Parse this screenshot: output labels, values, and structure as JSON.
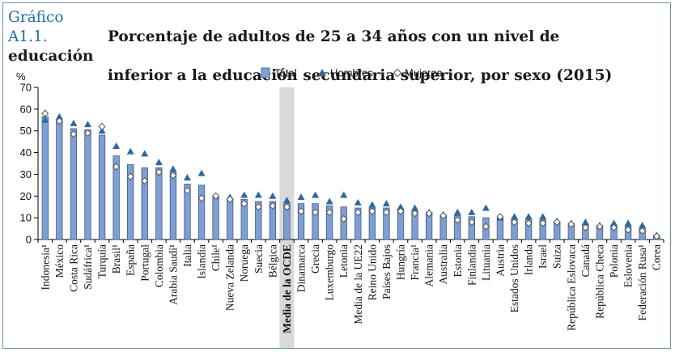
{
  "title": {
    "label": "Gráfico A1.1.",
    "line1": "Porcentaje de adultos de 25 a 34 años con un nivel de educación",
    "line2": "inferior a la educación secundaria superior, por sexo (2015)"
  },
  "colors": {
    "bar": "#7f9fd2",
    "bar_border": "#3a5a8a",
    "triangle": "#2a6aa0",
    "diamond_fill": "#ffffff",
    "diamond_stroke": "#555555",
    "oecd_band": "#d9d9d9",
    "frame": "#6f8fb0"
  },
  "chart_data": {
    "type": "bar",
    "ylabel": "%",
    "ylim": [
      0,
      70
    ],
    "yticks": [
      0,
      10,
      20,
      30,
      40,
      50,
      60,
      70
    ],
    "grid": false,
    "legend_position": "top-center",
    "highlight_category": "Media de la OCDE",
    "categories": [
      "Indonesia¹",
      "México",
      "Costa Rica",
      "Sudáfrica¹",
      "Turquía",
      "Brasil¹",
      "España",
      "Portugal",
      "Colombia",
      "Arabia Saudí¹",
      "Italia",
      "Islandia",
      "Chile¹",
      "Nueva Zelanda",
      "Noruega",
      "Suecia",
      "Bélgica",
      "Media de la OCDE",
      "Dinamarca",
      "Grecia",
      "Luxemburgo",
      "Letonia",
      "Media de la UE22",
      "Reino Unido",
      "Países Bajos",
      "Hungría",
      "Francia¹",
      "Alemania",
      "Australia",
      "Estonia",
      "Finlandia",
      "Lituania",
      "Austria",
      "Estados Unidos",
      "Irlanda",
      "Israel",
      "Suiza",
      "República Eslovaca",
      "Canadá",
      "República Checa",
      "Polonia",
      "Eslovenia",
      "Federación Rusa¹",
      "Corea"
    ],
    "series": [
      {
        "name": "Total",
        "marker": "bar",
        "values": [
          56.5,
          55,
          51,
          50.5,
          48,
          38.5,
          34.5,
          33,
          33,
          31,
          25.5,
          25,
          20,
          19,
          18.5,
          17.5,
          17.5,
          16.5,
          16.5,
          16.5,
          15.5,
          15,
          14.5,
          14.5,
          14.5,
          14,
          13.5,
          12.5,
          11.5,
          11,
          10.5,
          10,
          10,
          9.5,
          9.5,
          9,
          8,
          7.5,
          7,
          6.5,
          6.5,
          6,
          5.5,
          2
        ]
      },
      {
        "name": "Hombres",
        "marker": "triangle",
        "values": [
          55,
          56.5,
          53.5,
          53,
          50,
          43,
          40.5,
          39.5,
          35.5,
          32.5,
          28.5,
          30.5,
          20,
          19.5,
          20.5,
          20.5,
          20,
          18,
          19.5,
          20.5,
          17.5,
          20.5,
          17,
          16,
          16.5,
          15,
          14.5,
          12.5,
          11.5,
          12.5,
          12.5,
          14.5,
          10,
          10.5,
          10.5,
          10.5,
          8.5,
          7.5,
          8,
          6.5,
          7.5,
          7.5,
          6.5,
          2
        ]
      },
      {
        "name": "Mujeres",
        "marker": "diamond",
        "values": [
          58,
          54.5,
          48.5,
          49,
          52,
          33.5,
          29,
          27,
          31,
          29.5,
          22.5,
          19,
          20,
          18.5,
          16.5,
          15,
          15.5,
          15,
          13,
          12.5,
          12.5,
          9.5,
          12.5,
          13,
          12.5,
          13,
          12,
          12,
          11,
          9,
          8,
          6,
          10.5,
          8,
          7.5,
          7.5,
          8,
          7,
          5.5,
          6,
          5.5,
          4.5,
          4,
          1.5
        ]
      }
    ]
  }
}
